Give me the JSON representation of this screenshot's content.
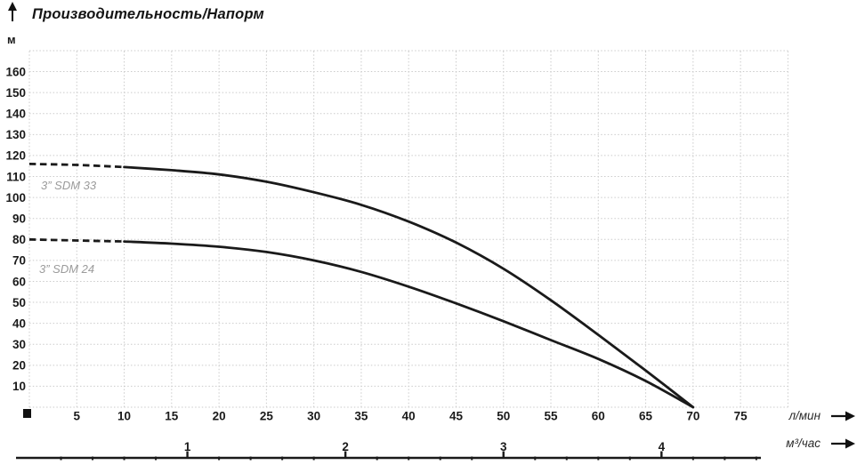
{
  "chart_data": {
    "type": "line",
    "title": "Производительность/Напорм",
    "ylabel": "м",
    "xlabel": "л/мин",
    "xlabel_secondary": "м³/час",
    "xlim": [
      0,
      80
    ],
    "ylim": [
      0,
      170
    ],
    "grid": true,
    "x_major_step": 5,
    "y_major_step": 10,
    "x_ticks": [
      5,
      10,
      15,
      20,
      25,
      30,
      35,
      40,
      45,
      50,
      55,
      60,
      65,
      70,
      75
    ],
    "y_ticks": [
      10,
      20,
      30,
      40,
      50,
      60,
      70,
      80,
      90,
      100,
      110,
      120,
      130,
      140,
      150,
      160
    ],
    "secondary_ticks": [
      1,
      2,
      3,
      4
    ],
    "secondary_minor_step": 0.2,
    "lmin_per_m3h": 16.6667,
    "series": [
      {
        "name": "3” SDM 33",
        "dashed_until_x": 10,
        "x": [
          0,
          5,
          10,
          15,
          20,
          25,
          30,
          35,
          40,
          45,
          50,
          55,
          60,
          65,
          70
        ],
        "y": [
          116,
          115.5,
          114.5,
          113,
          111,
          107.5,
          102.5,
          96.5,
          88.5,
          78.5,
          66,
          51,
          34.5,
          17.5,
          0
        ]
      },
      {
        "name": "3” SDM 24",
        "dashed_until_x": 10,
        "x": [
          0,
          5,
          10,
          15,
          20,
          25,
          30,
          35,
          40,
          45,
          50,
          55,
          60,
          65,
          70
        ],
        "y": [
          80,
          79.5,
          79,
          78,
          76.5,
          74,
          70,
          64.5,
          57.5,
          49.5,
          41,
          32,
          23,
          12.5,
          0
        ]
      }
    ],
    "colors": {
      "curve": "#1a1a1a",
      "grid": "#cbcbcb",
      "tick_label": "#1a1a1a",
      "series_label": "#9b9b9b",
      "axis_line": "#1a1a1a",
      "unit_label": "#2a2a2a"
    }
  }
}
